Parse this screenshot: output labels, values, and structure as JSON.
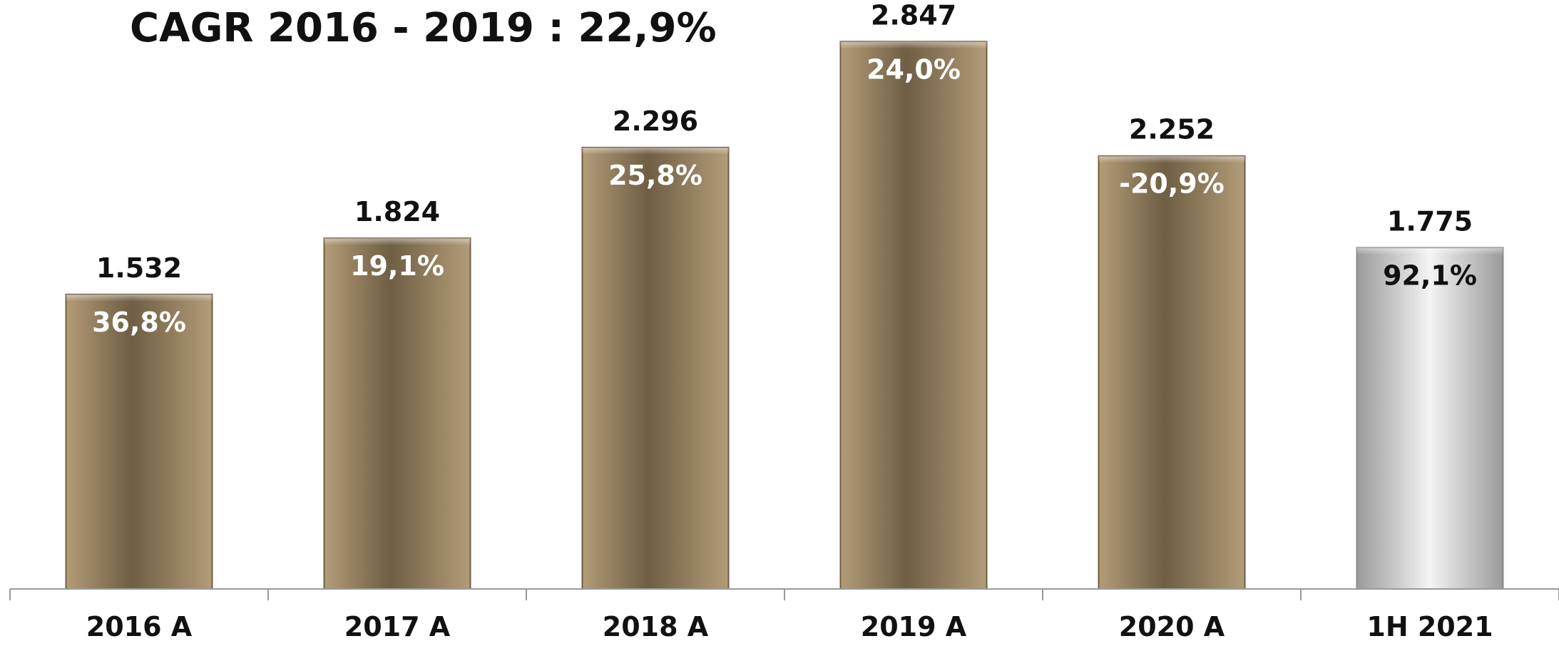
{
  "chart_data": {
    "type": "bar",
    "title": "CAGR 2016 - 2019 : 22,9%",
    "categories": [
      "2016 A",
      "2017 A",
      "2018 A",
      "2019 A",
      "2020 A",
      "1H 2021"
    ],
    "values": [
      1532,
      1824,
      2296,
      2847,
      2252,
      1775
    ],
    "value_labels": [
      "1.532",
      "1.824",
      "2.296",
      "2.847",
      "2.252",
      "1.775"
    ],
    "growth_labels": [
      "36,8%",
      "19,1%",
      "25,8%",
      "24,0%",
      "-20,9%",
      "92,1%"
    ],
    "ylim": [
      0,
      2900
    ],
    "grid": false,
    "legend": "none",
    "colors": {
      "bar": "#9c8564",
      "bar_dark": "#6f5e44",
      "highlight_bar": "#c8c8c8",
      "highlight_bar_dark": "#8a8a8a"
    },
    "highlight_index": 5
  }
}
